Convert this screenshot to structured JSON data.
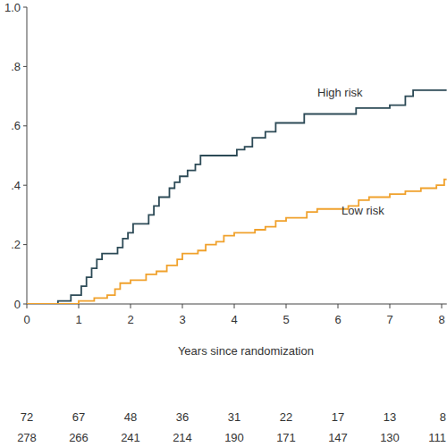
{
  "chart_data": {
    "type": "step",
    "x_label": "Years since randomization",
    "xlim": [
      0,
      8.1
    ],
    "xticks": [
      0,
      1,
      2,
      3,
      4,
      5,
      6,
      7,
      8
    ],
    "ylim": [
      0,
      1
    ],
    "yticks": [
      0,
      {
        "value": 0.2,
        "label": ".2"
      },
      {
        "value": 0.4,
        "label": ".4"
      },
      {
        "value": 0.6,
        "label": ".6"
      },
      {
        "value": 0.8,
        "label": ".8"
      },
      {
        "value": 1,
        "label": "1.0"
      }
    ],
    "grid": false,
    "series": [
      {
        "name": "High risk",
        "color": "#2c4a56",
        "x": [
          0,
          0.6,
          0.85,
          1.05,
          1.15,
          1.25,
          1.35,
          1.45,
          1.75,
          1.85,
          1.95,
          2.05,
          2.35,
          2.45,
          2.55,
          2.75,
          2.85,
          2.95,
          3.1,
          3.25,
          3.35,
          4.05,
          4.2,
          4.35,
          4.6,
          4.8,
          5.35,
          6.35,
          7.0,
          7.3,
          7.45,
          8.1
        ],
        "values": [
          0,
          0.01,
          0.03,
          0.06,
          0.09,
          0.12,
          0.15,
          0.17,
          0.19,
          0.22,
          0.24,
          0.27,
          0.3,
          0.33,
          0.36,
          0.39,
          0.41,
          0.43,
          0.45,
          0.47,
          0.5,
          0.52,
          0.53,
          0.56,
          0.58,
          0.61,
          0.64,
          0.66,
          0.67,
          0.7,
          0.72,
          0.72
        ]
      },
      {
        "name": "Low risk",
        "color": "#f0a12c",
        "x": [
          0,
          1.0,
          1.3,
          1.55,
          1.7,
          1.8,
          2.0,
          2.3,
          2.5,
          2.7,
          2.9,
          3.0,
          3.3,
          3.45,
          3.65,
          3.8,
          4.0,
          4.4,
          4.6,
          4.8,
          5.0,
          5.4,
          5.6,
          6.2,
          6.4,
          6.6,
          7.0,
          7.3,
          7.6,
          7.9,
          8.05,
          8.1
        ],
        "values": [
          0,
          0.01,
          0.02,
          0.03,
          0.05,
          0.07,
          0.08,
          0.1,
          0.11,
          0.13,
          0.15,
          0.17,
          0.18,
          0.2,
          0.21,
          0.23,
          0.24,
          0.25,
          0.26,
          0.28,
          0.29,
          0.31,
          0.32,
          0.33,
          0.35,
          0.36,
          0.37,
          0.38,
          0.39,
          0.4,
          0.42,
          0.42
        ]
      }
    ],
    "at_risk": [
      {
        "values": [
          72,
          67,
          48,
          36,
          31,
          22,
          17,
          13,
          8
        ]
      },
      {
        "values": [
          278,
          266,
          241,
          214,
          190,
          171,
          147,
          130,
          111
        ]
      }
    ]
  }
}
